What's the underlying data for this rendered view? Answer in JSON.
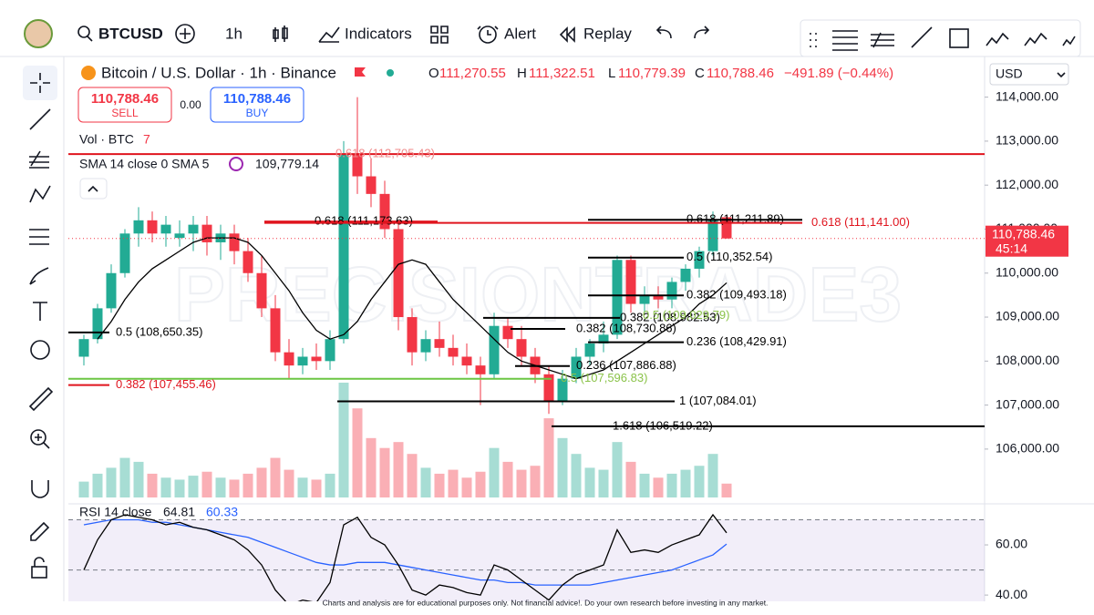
{
  "toolbar": {
    "symbol": "BTCUSD",
    "interval": "1h",
    "indicators": "Indicators",
    "alert": "Alert",
    "replay": "Replay"
  },
  "currency": "USD",
  "watermark": "PRECISIONTRADE3",
  "footer": "Charts and analysis are for educational purposes only. Not financial advice!. Do your own research before investing in any market.",
  "chart_data": {
    "type": "candlestick",
    "title": "Bitcoin / U.S. Dollar · 1h · Binance",
    "ohlc_legend": [
      {
        "key": "O",
        "value": {
          "value": 111270.55,
          "label": "111,270.55"
        }
      },
      {
        "key": "H",
        "value": {
          "value": 111322.51,
          "label": "111,322.51"
        }
      },
      {
        "key": "L",
        "value": {
          "value": 110779.39,
          "label": "110,779.39"
        }
      },
      {
        "key": "C",
        "value": {
          "value": 110788.46,
          "label": "110,788.46"
        }
      }
    ],
    "change": "−491.89 (−0.44%)",
    "sell": {
      "price": "110,788.46",
      "label": "SELL"
    },
    "spread": "0.00",
    "buy": {
      "price": "110,788.46",
      "label": "BUY"
    },
    "volume_label": "Vol · BTC",
    "volume_last": "7",
    "sma_label": "SMA 14 close 0 SMA 5",
    "sma_last": "109,779.14",
    "last_price": {
      "value": 110788.46,
      "label": "110,788.46"
    },
    "countdown": "45:14",
    "up_color": "#22ab94",
    "down_color": "#f23645",
    "open": [
      108100,
      108500,
      109200,
      110000,
      110900,
      111200,
      110900,
      110800,
      110900,
      111100,
      110700,
      110900,
      110500,
      110000,
      109200,
      108200,
      107900,
      108100,
      108000,
      108500,
      112700,
      112200,
      111800,
      111000,
      109000,
      108200,
      108500,
      108300,
      108100,
      107900,
      107700,
      108800,
      108500,
      108100,
      107700,
      107100,
      107600,
      108100,
      108400,
      108600,
      110300,
      109300,
      109500,
      109400,
      109800,
      110100,
      110500,
      111270.55
    ],
    "high": [
      108600,
      109300,
      110200,
      111000,
      111500,
      111400,
      111300,
      111200,
      111300,
      111300,
      111100,
      111100,
      110800,
      110400,
      109500,
      108500,
      108300,
      108400,
      108700,
      113000,
      114000,
      112600,
      112100,
      111200,
      109200,
      108700,
      108900,
      108600,
      108400,
      108100,
      109100,
      109000,
      108800,
      108300,
      107900,
      107800,
      108300,
      108500,
      108900,
      110400,
      110400,
      109700,
      109700,
      109900,
      110200,
      110600,
      111400,
      111322.51
    ],
    "low": [
      107900,
      108400,
      109100,
      109900,
      110600,
      110700,
      110600,
      110600,
      110500,
      110400,
      110300,
      110200,
      109800,
      109000,
      108000,
      107600,
      107700,
      107800,
      107800,
      108400,
      111800,
      111500,
      110800,
      108700,
      107900,
      108000,
      108100,
      107900,
      107700,
      107000,
      107600,
      108300,
      107900,
      107500,
      106800,
      107000,
      107500,
      107900,
      108200,
      108500,
      109100,
      109100,
      109200,
      109200,
      109600,
      109900,
      110400,
      110779.39
    ],
    "close": [
      108500,
      109200,
      110000,
      110900,
      111200,
      110900,
      111100,
      110900,
      111100,
      110700,
      110900,
      110500,
      110000,
      109200,
      108200,
      107900,
      108100,
      108000,
      108500,
      112700,
      112200,
      111800,
      111000,
      109000,
      108200,
      108500,
      108300,
      108100,
      107900,
      107700,
      108800,
      108500,
      108100,
      107700,
      107100,
      107600,
      108100,
      108400,
      108600,
      110300,
      109300,
      109500,
      109400,
      109800,
      110100,
      110500,
      111200,
      110788.46
    ],
    "volume": [
      8,
      12,
      15,
      20,
      18,
      12,
      10,
      9,
      11,
      13,
      10,
      9,
      12,
      15,
      20,
      14,
      10,
      9,
      12,
      58,
      45,
      30,
      25,
      28,
      22,
      15,
      12,
      14,
      10,
      13,
      25,
      18,
      14,
      16,
      40,
      30,
      22,
      15,
      14,
      28,
      18,
      12,
      10,
      12,
      14,
      16,
      22,
      7
    ],
    "volume_lim": [
      0,
      220
    ],
    "sma": [
      null,
      108500,
      108900,
      109400,
      109800,
      110100,
      110300,
      110500,
      110700,
      110800,
      110800,
      110800,
      110700,
      110400,
      110000,
      109600,
      109100,
      108700,
      108500,
      108600,
      108900,
      109400,
      109800,
      110200,
      110300,
      110200,
      109800,
      109400,
      109100,
      108800,
      108500,
      108200,
      108000,
      107900,
      107800,
      107700,
      107600,
      107700,
      107800,
      108000,
      108200,
      108400,
      108600,
      108800,
      109000,
      109300,
      109500,
      109779.14
    ],
    "ylim": [
      104900,
      114800
    ],
    "yticks": [
      {
        "value": 106000,
        "label": "106,000.00"
      },
      {
        "value": 107000,
        "label": "107,000.00"
      },
      {
        "value": 108000,
        "label": "108,000.00"
      },
      {
        "value": 109000,
        "label": "109,000.00"
      },
      {
        "value": 110000,
        "label": "110,000.00"
      },
      {
        "value": 111000,
        "label": "111,000.00"
      },
      {
        "value": 112000,
        "label": "112,000.00"
      },
      {
        "value": 113000,
        "label": "113,000.00"
      },
      {
        "value": 114000,
        "label": "114,000.00"
      }
    ],
    "fib_levels": [
      {
        "value": 112705.43,
        "label": "0.618 (112,705.43)",
        "color": "#f08a8a",
        "line_color": "#e0141e"
      },
      {
        "value": 111173.63,
        "label": "0.618 (111,173.63)",
        "color": "#000000",
        "line_color": "#e0141e"
      },
      {
        "value": 111211.89,
        "label": "0.618 (111,211.89)",
        "color": "#000000",
        "line_color": "#000000"
      },
      {
        "value": 111141.0,
        "label": "0.618 (111,141.00)",
        "color": "#e0141e",
        "line_color": "#e0141e"
      },
      {
        "value": 110352.54,
        "label": "0.5 (110,352.54)",
        "color": "#000000",
        "line_color": "#000000"
      },
      {
        "value": 109493.18,
        "label": "0.382 (109,493.18)",
        "color": "#000000",
        "line_color": "#000000"
      },
      {
        "value": 108982.53,
        "label": "0.382 (108,982.53)",
        "color": "#000000",
        "line_color": "#000000"
      },
      {
        "value": 109029.79,
        "label": "0.5 (109,029.79)",
        "color": "#8bc34a",
        "line_color": "#8bc34a"
      },
      {
        "value": 108730.86,
        "label": "0.382 (108,730.86)",
        "color": "#000000",
        "line_color": "#000000"
      },
      {
        "value": 108429.91,
        "label": "0.236 (108,429.91)",
        "color": "#000000",
        "line_color": "#000000"
      },
      {
        "value": 108650.35,
        "label": "0.5 (108,650.35)",
        "color": "#000000",
        "line_color": "#000000"
      },
      {
        "value": 107886.88,
        "label": "0.236 (107,886.88)",
        "color": "#000000",
        "line_color": "#000000"
      },
      {
        "value": 107596.83,
        "label": "0.5 (107,596.83)",
        "color": "#8bc34a",
        "line_color": "#6cc644"
      },
      {
        "value": 107455.46,
        "label": "0.382 (107,455.46)",
        "color": "#e0141e",
        "line_color": "#e0141e"
      },
      {
        "value": 107084.01,
        "label": "1 (107,084.01)",
        "color": "#000000",
        "line_color": "#000000"
      },
      {
        "value": 106519.22,
        "label": "1.618 (106,519.22)",
        "color": "#000000",
        "line_color": "#000000"
      }
    ],
    "rsi_label": "RSI 14 close",
    "rsi_last": "64.81",
    "rsi_ma_last": "60.33",
    "rsi": [
      50,
      62,
      70,
      72,
      71,
      70,
      68,
      69,
      67,
      66,
      64,
      62,
      58,
      52,
      42,
      36,
      38,
      37,
      45,
      68,
      71,
      63,
      60,
      52,
      42,
      40,
      44,
      43,
      41,
      40,
      52,
      50,
      46,
      42,
      38,
      44,
      48,
      50,
      52,
      66,
      57,
      58,
      57,
      60,
      62,
      64,
      72,
      64.81
    ],
    "rsi_ma": [
      68,
      69,
      70,
      70,
      70,
      69,
      69,
      68,
      67,
      66,
      65,
      64,
      63,
      61,
      59,
      57,
      55,
      53,
      52,
      52,
      53,
      53,
      53,
      52,
      51,
      50,
      49,
      48,
      47,
      46,
      46,
      45,
      45,
      44,
      44,
      44,
      44,
      44,
      45,
      46,
      47,
      48,
      49,
      50,
      52,
      54,
      56,
      60.33
    ],
    "rsi_color": "#000000",
    "rsi_ma_color": "#2962ff",
    "rsi_ylim": [
      37.5,
      72
    ],
    "rsi_yticks": [
      {
        "value": 40,
        "label": "40.00"
      },
      {
        "value": 60,
        "label": "60.00"
      }
    ],
    "rsi_levels": [
      70,
      50
    ]
  }
}
